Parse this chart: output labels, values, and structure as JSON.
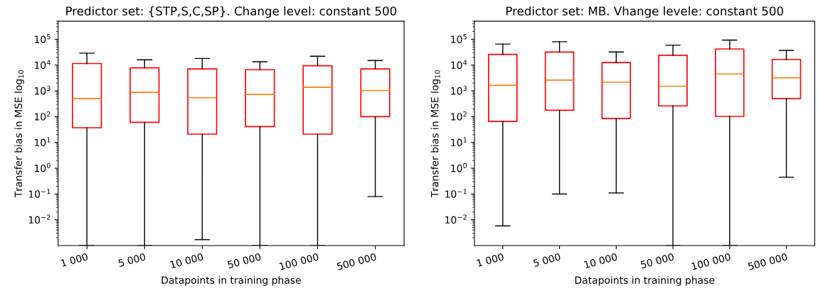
{
  "chart_data": [
    {
      "type": "box",
      "title": "Predictor set: {STP,S,C,SP}. Change level: constant 500",
      "xlabel": "Datapoints in training phase",
      "ylabel": "Transfer bias in MSE log$_{10}$",
      "log": true,
      "grid": false,
      "color": "#ff0000",
      "categories": [
        "1 000",
        "5 000",
        "10 000",
        "50 000",
        "100 000",
        "500 000"
      ],
      "ylim": [
        0.001,
        500000
      ],
      "yticks": [
        {
          "value": 0.01,
          "label": "10$^{−2}$"
        },
        {
          "value": 0.1,
          "label": "10$^{−1}$"
        },
        {
          "value": 1,
          "label": "10$^{0}$"
        },
        {
          "value": 10,
          "label": "10$^{1}$"
        },
        {
          "value": 100,
          "label": "10$^{2}$"
        },
        {
          "value": 1000,
          "label": "10$^{3}$"
        },
        {
          "value": 10000,
          "label": "10$^{4}$"
        },
        {
          "value": 100000,
          "label": "10$^{5}$"
        }
      ],
      "boxes": [
        {
          "low": 0.001,
          "q1": 37,
          "median": 500,
          "q3": 11500,
          "high": 29000
        },
        {
          "low": 0.001,
          "q1": 60,
          "median": 870,
          "q3": 7800,
          "high": 16000
        },
        {
          "low": 0.0017,
          "q1": 21,
          "median": 540,
          "q3": 7100,
          "high": 18000
        },
        {
          "low": 0.001,
          "q1": 41,
          "median": 720,
          "q3": 6600,
          "high": 13500
        },
        {
          "low": 0.001,
          "q1": 21,
          "median": 1380,
          "q3": 9400,
          "high": 22000
        },
        {
          "low": 0.08,
          "q1": 100,
          "median": 1030,
          "q3": 7100,
          "high": 15000
        }
      ]
    },
    {
      "type": "box",
      "title": "Predictor set: MB. Vhange levele: constant 500",
      "xlabel": "Datapoints in training phase",
      "ylabel": "Transfer bias in MSE log$_{10}$",
      "log": true,
      "grid": false,
      "color": "#ff0000",
      "categories": [
        "1 000",
        "5 000",
        "10 000",
        "50 000",
        "100 000",
        "500 000"
      ],
      "ylim": [
        0.001,
        500000
      ],
      "yticks": [
        {
          "value": 0.01,
          "label": "10$^{−2}$"
        },
        {
          "value": 0.1,
          "label": "10$^{−1}$"
        },
        {
          "value": 1,
          "label": "10$^{0}$"
        },
        {
          "value": 10,
          "label": "10$^{1}$"
        },
        {
          "value": 100,
          "label": "10$^{2}$"
        },
        {
          "value": 1000,
          "label": "10$^{3}$"
        },
        {
          "value": 10000,
          "label": "10$^{4}$"
        },
        {
          "value": 100000,
          "label": "10$^{5}$"
        }
      ],
      "boxes": [
        {
          "low": 0.0058,
          "q1": 65,
          "median": 1650,
          "q3": 26000,
          "high": 65000
        },
        {
          "low": 0.1,
          "q1": 177,
          "median": 2600,
          "q3": 32000,
          "high": 80000
        },
        {
          "low": 0.11,
          "q1": 85,
          "median": 2170,
          "q3": 12500,
          "high": 32000
        },
        {
          "low": 0.001,
          "q1": 260,
          "median": 1510,
          "q3": 24000,
          "high": 59000
        },
        {
          "low": 0.001,
          "q1": 102,
          "median": 4500,
          "q3": 42000,
          "high": 93000
        },
        {
          "low": 0.45,
          "q1": 500,
          "median": 3200,
          "q3": 16500,
          "high": 37000
        }
      ]
    }
  ]
}
